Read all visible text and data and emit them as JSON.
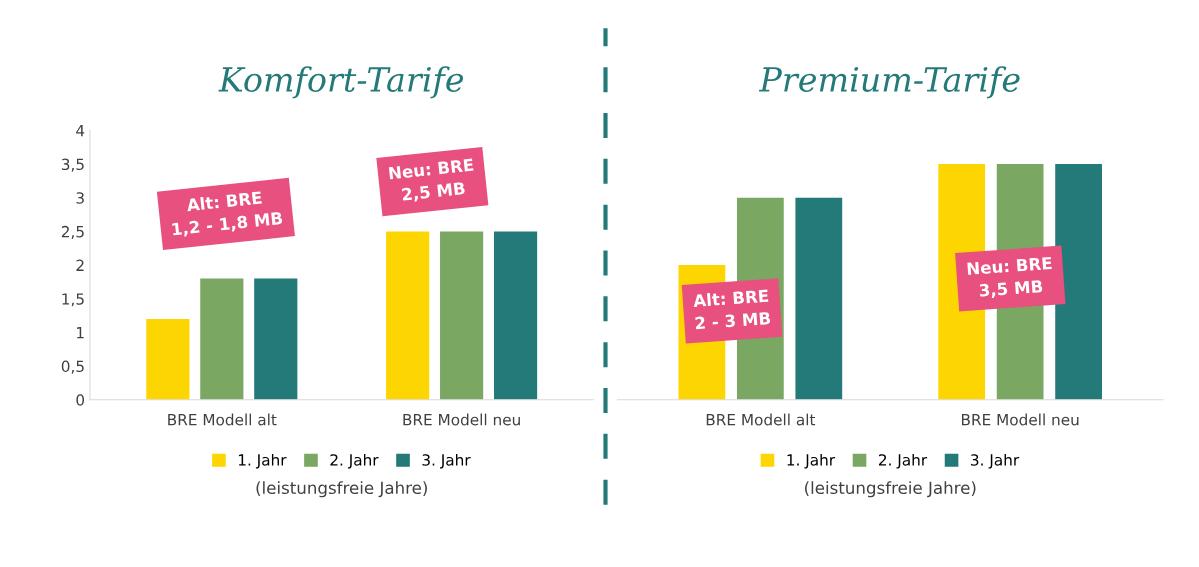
{
  "chart_data": [
    {
      "type": "bar",
      "title": "Komfort-Tarife",
      "xlabel": "(leistungsfreie Jahre)",
      "categories": [
        "BRE Modell alt",
        "BRE Modell neu"
      ],
      "series": [
        {
          "name": "1. Jahr",
          "color": "#fdd500",
          "values": [
            1.2,
            2.5
          ]
        },
        {
          "name": "2. Jahr",
          "color": "#7aa862",
          "values": [
            1.8,
            2.5
          ]
        },
        {
          "name": "3. Jahr",
          "color": "#237a78",
          "values": [
            1.8,
            2.5
          ]
        }
      ],
      "ylim": [
        0,
        4
      ],
      "yticks": [
        0,
        {
          "value": 0.5,
          "label": "0,5"
        },
        1,
        {
          "value": 1.5,
          "label": "1,5"
        },
        2,
        {
          "value": 2.5,
          "label": "2,5"
        },
        3,
        {
          "value": 3.5,
          "label": "3,5"
        },
        4
      ],
      "annotations": [
        "Alt: BRE\n1,2 - 1,8 MB",
        "Neu: BRE\n2,5 MB"
      ],
      "legend": "bottom"
    },
    {
      "type": "bar",
      "title": "Premium-Tarife",
      "xlabel": "(leistungsfreie Jahre)",
      "categories": [
        "BRE Modell alt",
        "BRE Modell neu"
      ],
      "series": [
        {
          "name": "1. Jahr",
          "color": "#fdd500",
          "values": [
            2,
            3.5
          ]
        },
        {
          "name": "2. Jahr",
          "color": "#7aa862",
          "values": [
            3,
            3.5
          ]
        },
        {
          "name": "3. Jahr",
          "color": "#237a78",
          "values": [
            3,
            3.5
          ]
        }
      ],
      "ylim": [
        0,
        4
      ],
      "tick_labels": "x",
      "annotations": [
        "Alt: BRE\n2 - 3 MB",
        "Neu: BRE\n3,5 MB"
      ],
      "legend": "bottom"
    }
  ]
}
